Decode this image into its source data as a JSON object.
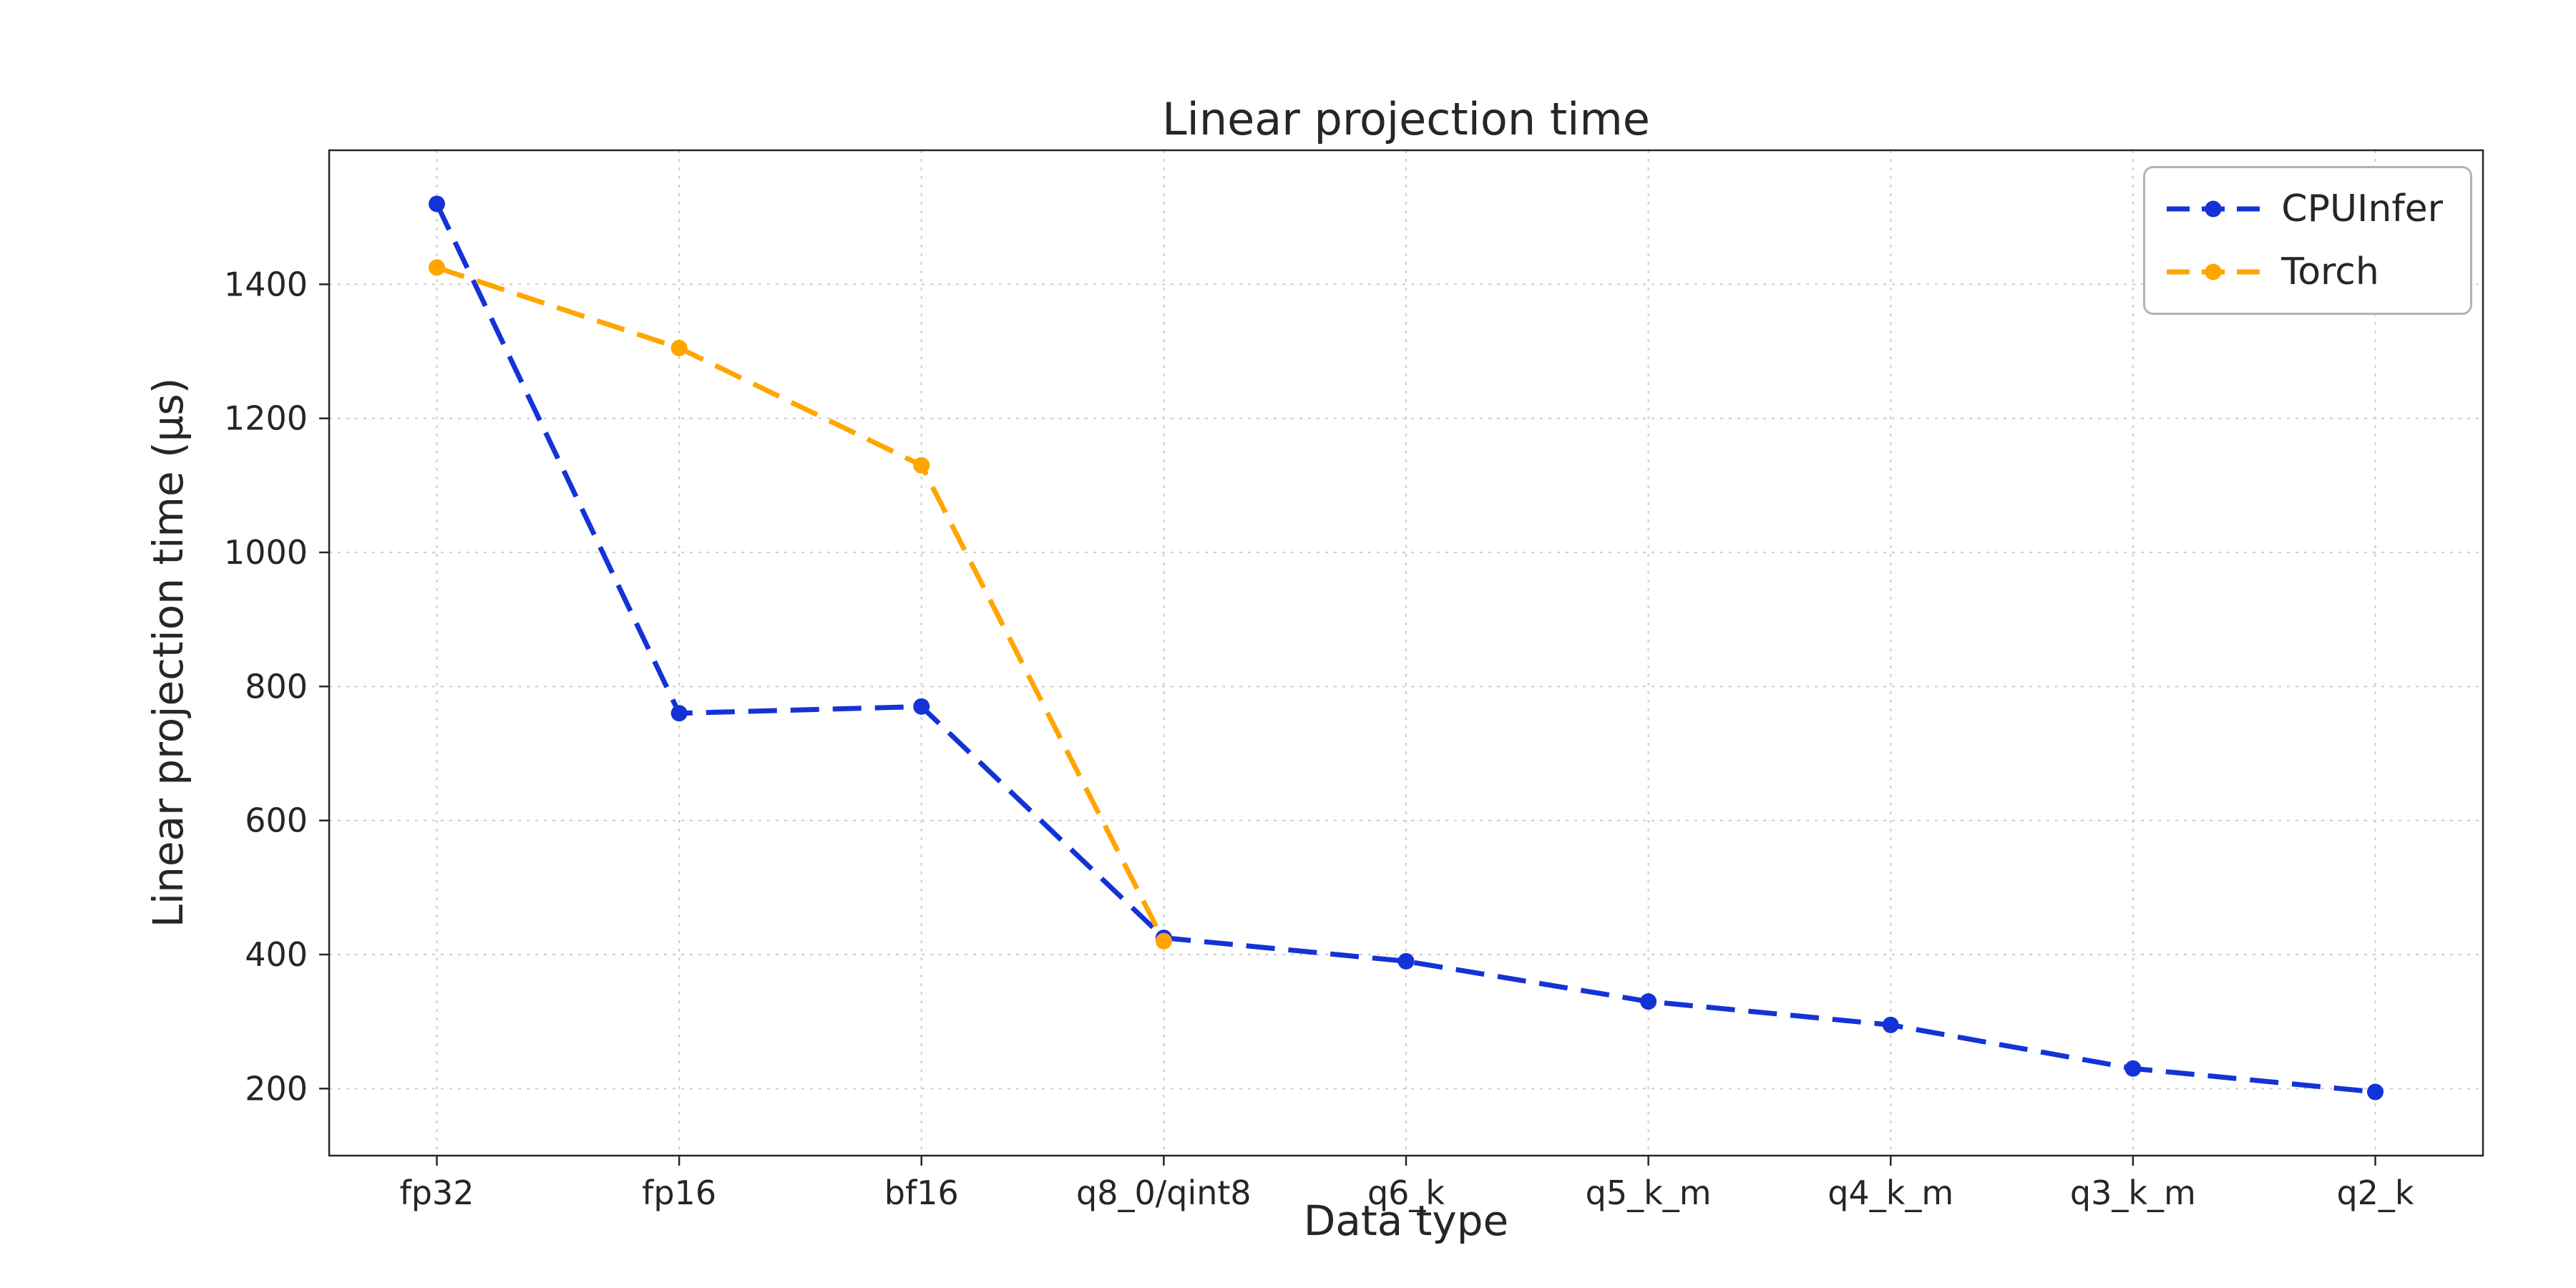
{
  "chart_data": {
    "type": "line",
    "title": "Linear projection time",
    "xlabel": "Data type",
    "ylabel": "Linear projection time (µs)",
    "categories": [
      "fp32",
      "fp16",
      "bf16",
      "q8_0/qint8",
      "q6_k",
      "q5_k_m",
      "q4_k_m",
      "q3_k_m",
      "q2_k"
    ],
    "series": [
      {
        "name": "CPUInfer",
        "color": "#1433d6",
        "linestyle": "dashed",
        "marker": "circle",
        "values": [
          1520,
          760,
          770,
          425,
          390,
          330,
          295,
          230,
          195
        ]
      },
      {
        "name": "Torch",
        "color": "#ffa500",
        "linestyle": "dashed",
        "marker": "circle",
        "values": [
          1425,
          1305,
          1130,
          420,
          null,
          null,
          null,
          null,
          null
        ]
      }
    ],
    "yticks": [
      200,
      400,
      600,
      800,
      1000,
      1200,
      1400
    ],
    "ylim": [
      100,
      1600
    ],
    "grid": true,
    "grid_color": "#cfcfcf",
    "spine_color": "#262626",
    "legend_position": "upper right",
    "legend_entries": [
      "CPUInfer",
      "Torch"
    ]
  }
}
